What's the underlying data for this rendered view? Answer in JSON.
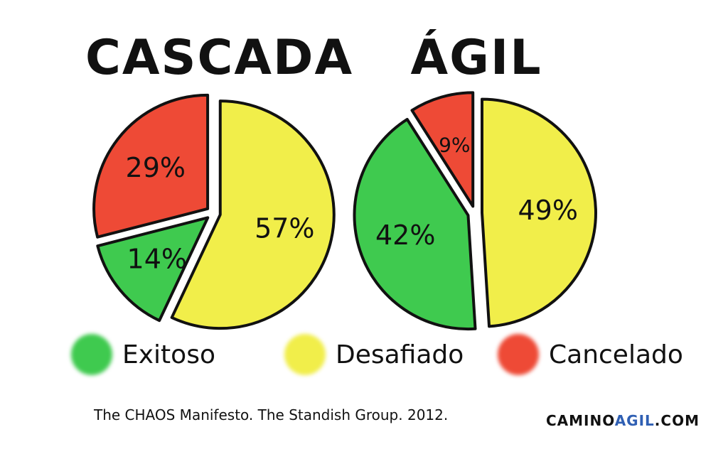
{
  "colors": {
    "exitoso": "#3fca4f",
    "desafiado": "#f1ee4a",
    "cancelado": "#ee4a36",
    "brand_accent": "#2f5fb3"
  },
  "chart_data": [
    {
      "type": "pie",
      "title": "CASCADA",
      "slices": [
        {
          "label": "Desafiado",
          "value": 57,
          "display": "57%"
        },
        {
          "label": "Exitoso",
          "value": 14,
          "display": "14%"
        },
        {
          "label": "Cancelado",
          "value": 29,
          "display": "29%"
        }
      ]
    },
    {
      "type": "pie",
      "title": "ÁGIL",
      "slices": [
        {
          "label": "Desafiado",
          "value": 49,
          "display": "49%"
        },
        {
          "label": "Exitoso",
          "value": 42,
          "display": "42%"
        },
        {
          "label": "Cancelado",
          "value": 9,
          "display": "9%"
        }
      ]
    }
  ],
  "legend": [
    {
      "label": "Exitoso",
      "color_key": "exitoso"
    },
    {
      "label": "Desafiado",
      "color_key": "desafiado"
    },
    {
      "label": "Cancelado",
      "color_key": "cancelado"
    }
  ],
  "source": "The CHAOS Manifesto. The Standish Group. 2012.",
  "brand": {
    "part1": "CAMINO",
    "part2": "AGIL",
    "part3": ".COM"
  }
}
